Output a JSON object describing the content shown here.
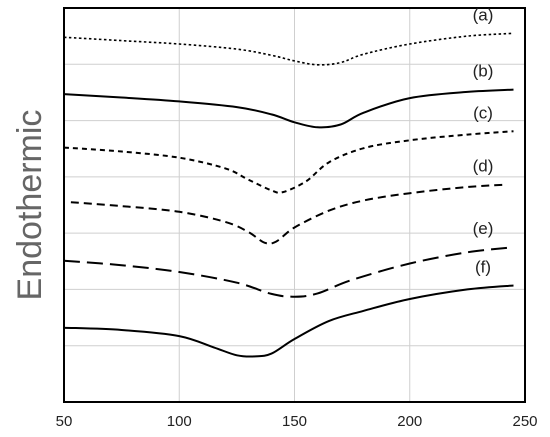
{
  "chart_data": {
    "type": "line",
    "xlabel": "",
    "ylabel": "Endothermic",
    "xlim": [
      50,
      250
    ],
    "ylim": [
      0,
      7
    ],
    "x_ticks": [
      50,
      100,
      150,
      200,
      250
    ],
    "grid": true,
    "y_tick_labels_shown": false,
    "series": [
      {
        "name": "(a)",
        "style": "dotted",
        "x": [
          50,
          75,
          100,
          125,
          140,
          150,
          160,
          170,
          180,
          200,
          225,
          245
        ],
        "y": [
          6.48,
          6.42,
          6.36,
          6.27,
          6.16,
          6.06,
          5.99,
          6.03,
          6.18,
          6.36,
          6.5,
          6.55
        ]
      },
      {
        "name": "(b)",
        "style": "solid",
        "x": [
          50,
          75,
          100,
          125,
          140,
          150,
          160,
          170,
          180,
          200,
          225,
          245
        ],
        "y": [
          5.47,
          5.41,
          5.34,
          5.24,
          5.11,
          4.97,
          4.88,
          4.93,
          5.14,
          5.4,
          5.51,
          5.55
        ]
      },
      {
        "name": "(c)",
        "style": "short-dash",
        "x": [
          50,
          75,
          100,
          120,
          130,
          140,
          145,
          155,
          165,
          180,
          200,
          225,
          245
        ],
        "y": [
          4.52,
          4.45,
          4.34,
          4.15,
          3.95,
          3.76,
          3.73,
          3.92,
          4.26,
          4.51,
          4.65,
          4.75,
          4.81
        ]
      },
      {
        "name": "(d)",
        "style": "dash",
        "x": [
          53,
          75,
          100,
          120,
          130,
          137,
          142,
          150,
          165,
          180,
          200,
          225,
          242
        ],
        "y": [
          3.55,
          3.48,
          3.38,
          3.2,
          3.02,
          2.83,
          2.85,
          3.1,
          3.4,
          3.58,
          3.71,
          3.82,
          3.86
        ]
      },
      {
        "name": "(e)",
        "style": "long-dash",
        "x": [
          50,
          75,
          100,
          125,
          140,
          150,
          160,
          175,
          200,
          225,
          245
        ],
        "y": [
          2.51,
          2.43,
          2.31,
          2.12,
          1.92,
          1.87,
          1.93,
          2.17,
          2.46,
          2.66,
          2.75
        ]
      },
      {
        "name": "(f)",
        "style": "solid",
        "x": [
          50,
          75,
          100,
          115,
          125,
          133,
          140,
          150,
          165,
          180,
          200,
          225,
          245
        ],
        "y": [
          1.32,
          1.28,
          1.17,
          0.97,
          0.83,
          0.81,
          0.86,
          1.12,
          1.44,
          1.62,
          1.83,
          2.0,
          2.07
        ]
      }
    ]
  }
}
